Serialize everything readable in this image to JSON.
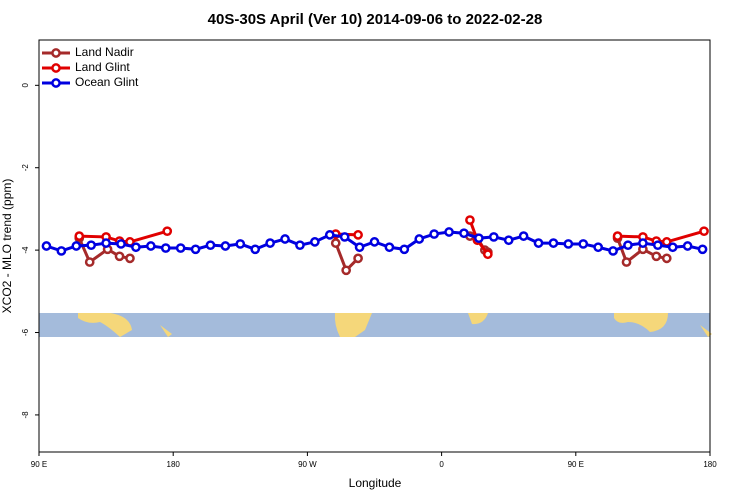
{
  "chart_data": {
    "type": "line",
    "title": "40S-30S April (Ver 10)   2014-09-06 to 2022-02-28",
    "xlabel": "Longitude",
    "ylabel": "XCO2 - MLO trend (ppm)",
    "xlim": [
      90,
      540
    ],
    "ylim": [
      1.1,
      -8.9
    ],
    "xticks": [
      {
        "value": 90,
        "label": "90 E"
      },
      {
        "value": 180,
        "label": "180"
      },
      {
        "value": 270,
        "label": "90 W"
      },
      {
        "value": 360,
        "label": "0"
      },
      {
        "value": 450,
        "label": "90 E"
      },
      {
        "value": 540,
        "label": "180"
      }
    ],
    "yticks": [
      0,
      -2,
      -4,
      -6,
      -8
    ],
    "legend": "top-left",
    "series": [
      {
        "name": "Land Nadir",
        "color": "#a52a2a",
        "x": [
          117,
          124,
          136,
          144,
          151,
          null,
          289,
          296,
          304,
          null,
          379,
          384,
          389,
          391,
          null,
          478,
          484,
          495,
          504,
          511
        ],
        "values": [
          -3.71,
          -4.29,
          -3.98,
          -4.15,
          -4.2,
          null,
          -3.83,
          -4.49,
          -4.2,
          null,
          -3.66,
          -3.71,
          -4.0,
          -4.05,
          null,
          -3.71,
          -4.29,
          -3.98,
          -4.15,
          -4.2
        ]
      },
      {
        "name": "Land Glint",
        "color": "#e00000",
        "x": [
          117,
          135,
          144,
          151,
          176,
          null,
          289,
          304,
          null,
          379,
          384,
          391,
          null,
          478,
          495,
          504,
          511,
          536
        ],
        "values": [
          -3.66,
          -3.68,
          -3.78,
          -3.8,
          -3.54,
          null,
          -3.61,
          -3.63,
          null,
          -3.27,
          -3.76,
          -4.1,
          null,
          -3.66,
          -3.68,
          -3.78,
          -3.8,
          -3.54
        ]
      },
      {
        "name": "Ocean Glint",
        "color": "#0000e0",
        "x": [
          95,
          105,
          115,
          125,
          135,
          145,
          155,
          165,
          175,
          185,
          195,
          205,
          215,
          225,
          235,
          245,
          255,
          265,
          275,
          285,
          295,
          305,
          315,
          325,
          335,
          345,
          355,
          365,
          375,
          385,
          395,
          405,
          415,
          425,
          435,
          445,
          455,
          465,
          475,
          485,
          495,
          505,
          515,
          525,
          535
        ],
        "values": [
          -3.9,
          -4.02,
          -3.9,
          -3.88,
          -3.83,
          -3.85,
          -3.93,
          -3.9,
          -3.95,
          -3.95,
          -3.98,
          -3.88,
          -3.9,
          -3.85,
          -3.98,
          -3.83,
          -3.73,
          -3.88,
          -3.8,
          -3.63,
          -3.68,
          -3.93,
          -3.8,
          -3.93,
          -3.98,
          -3.73,
          -3.61,
          -3.56,
          -3.59,
          -3.71,
          -3.68,
          -3.76,
          -3.66,
          -3.83,
          -3.83,
          -3.85,
          -3.85,
          -3.93,
          -4.02,
          -3.88,
          -3.83,
          -3.88,
          -3.93,
          -3.9,
          -3.98
        ]
      }
    ]
  }
}
